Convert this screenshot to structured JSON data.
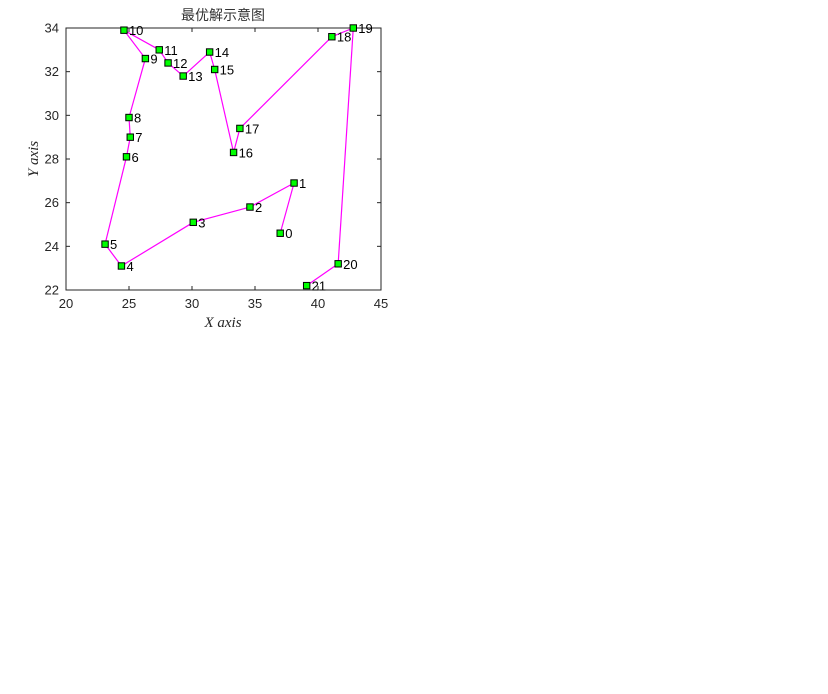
{
  "chart_data": {
    "type": "line",
    "title": "最优解示意图",
    "xlabel": "X axis",
    "ylabel": "Y axis",
    "xlim": [
      20,
      45
    ],
    "ylim": [
      22,
      34
    ],
    "xticks": [
      "20",
      "25",
      "30",
      "35",
      "40",
      "45"
    ],
    "yticks": [
      "22",
      "24",
      "26",
      "28",
      "30",
      "32",
      "34"
    ],
    "grid": false,
    "colors": {
      "route_line": "#ff00ff",
      "marker_fill": "#00ff00",
      "marker_edge": "#000000"
    },
    "points": [
      {
        "label": "0",
        "x": 37.0,
        "y": 24.6
      },
      {
        "label": "1",
        "x": 38.1,
        "y": 26.9
      },
      {
        "label": "2",
        "x": 34.6,
        "y": 25.8
      },
      {
        "label": "3",
        "x": 30.1,
        "y": 25.1
      },
      {
        "label": "4",
        "x": 24.4,
        "y": 23.1
      },
      {
        "label": "5",
        "x": 23.1,
        "y": 24.1
      },
      {
        "label": "6",
        "x": 24.8,
        "y": 28.1
      },
      {
        "label": "7",
        "x": 25.1,
        "y": 29.0
      },
      {
        "label": "8",
        "x": 25.0,
        "y": 29.9
      },
      {
        "label": "9",
        "x": 26.3,
        "y": 32.6
      },
      {
        "label": "10",
        "x": 24.6,
        "y": 33.9
      },
      {
        "label": "11",
        "x": 27.4,
        "y": 33.0
      },
      {
        "label": "12",
        "x": 28.1,
        "y": 32.4
      },
      {
        "label": "13",
        "x": 29.3,
        "y": 31.8
      },
      {
        "label": "14",
        "x": 31.4,
        "y": 32.9
      },
      {
        "label": "15",
        "x": 31.8,
        "y": 32.1
      },
      {
        "label": "16",
        "x": 33.3,
        "y": 28.3
      },
      {
        "label": "17",
        "x": 33.8,
        "y": 29.4
      },
      {
        "label": "18",
        "x": 41.1,
        "y": 33.6
      },
      {
        "label": "19",
        "x": 42.8,
        "y": 34.0
      },
      {
        "label": "20",
        "x": 41.6,
        "y": 23.2
      },
      {
        "label": "21",
        "x": 39.1,
        "y": 22.2
      }
    ],
    "route": [
      "0",
      "1",
      "2",
      "3",
      "4",
      "5",
      "6",
      "7",
      "8",
      "9",
      "10",
      "11",
      "12",
      "13",
      "14",
      "15",
      "16",
      "17",
      "18",
      "19",
      "20",
      "21"
    ]
  }
}
